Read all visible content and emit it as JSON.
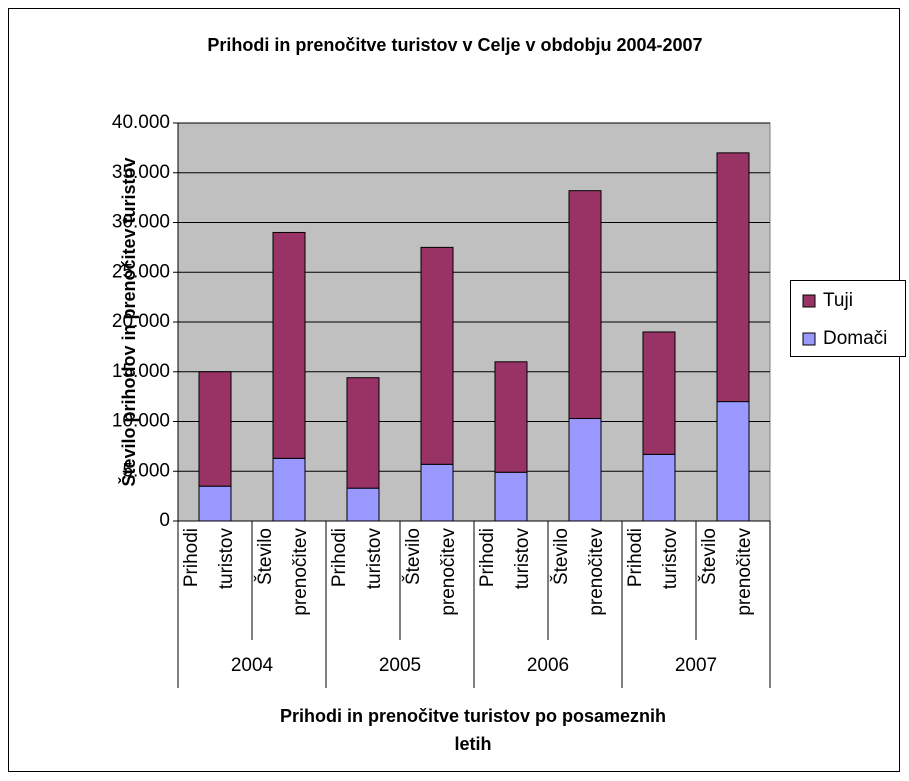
{
  "chart_data": {
    "type": "stacked_bar",
    "title": "Prihodi in prenočitve turistov  v Celje v obdobju 2004-2007",
    "y_label": "Število prihodov in prenočitev turistov",
    "x_label": [
      "Prihodi in prenočitve turistov po posameznih",
      "letih"
    ],
    "categories": [
      [
        "Prihodi",
        "turistov"
      ],
      [
        "Število",
        "prenočitev"
      ],
      [
        "Prihodi",
        "turistov"
      ],
      [
        "Število",
        "prenočitev"
      ],
      [
        "Prihodi",
        "turistov"
      ],
      [
        "Število",
        "prenočitev"
      ],
      [
        "Prihodi",
        "turistov"
      ],
      [
        "Število",
        "prenočitev"
      ]
    ],
    "groups": [
      "2004",
      "2005",
      "2006",
      "2007"
    ],
    "series": [
      {
        "name": "Domači",
        "color": "#9999ff",
        "values": [
          3500,
          6300,
          3300,
          5700,
          4900,
          10300,
          6700,
          12000
        ]
      },
      {
        "name": "Tuji",
        "color": "#993366",
        "values": [
          11500,
          22700,
          11100,
          21800,
          11100,
          22900,
          12300,
          25000
        ]
      }
    ],
    "ylim": [
      0,
      40000
    ],
    "yticks": [
      0,
      {
        "value": 5000,
        "label": "5.000"
      },
      {
        "value": 10000,
        "label": "10.000"
      },
      {
        "value": 15000,
        "label": "15.000"
      },
      {
        "value": 20000,
        "label": "20.000"
      },
      {
        "value": 25000,
        "label": "25.000"
      },
      {
        "value": 30000,
        "label": "30.000"
      },
      {
        "value": 35000,
        "label": "35.000"
      },
      {
        "value": 40000,
        "label": "40.000"
      }
    ],
    "grid": true,
    "legend": "right"
  }
}
